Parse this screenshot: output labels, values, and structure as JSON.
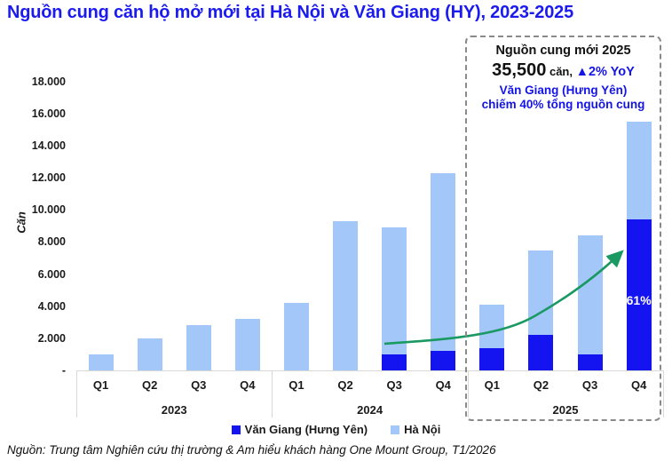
{
  "title": "Nguồn cung căn hộ mở mới tại Hà Nội và Văn Giang (HY), 2023-2025",
  "y_axis": {
    "title": "Căn",
    "tick_labels": [
      "-",
      "2.000",
      "4.000",
      "6.000",
      "8.000",
      "10.000",
      "12.000",
      "14.000",
      "16.000",
      "18.000"
    ]
  },
  "annotation": {
    "heading": "Nguồn cung mới 2025",
    "value": "35,500",
    "unit": "căn,",
    "yoy": "▲2% YoY",
    "line3": "Văn Giang (Hưng Yên)",
    "line4": "chiếm 40% tổng nguồn cung"
  },
  "legend": [
    {
      "label": "Văn Giang (Hưng Yên)",
      "color": "#1414f0"
    },
    {
      "label": "Hà Nội",
      "color": "#a3c7f8"
    }
  ],
  "source": "Nguồn: Trung tâm Nghiên cứu thị trường & Am hiểu khách hàng One Mount Group, T1/2026",
  "colors": {
    "title_blue": "#1b1bf0",
    "van_giang": "#1414f0",
    "ha_noi": "#a3c7f8",
    "arrow_green": "#1a9a62",
    "axis_gray": "#d9d9d9",
    "dash_border": "#8a8a8a"
  },
  "chart_data": {
    "type": "bar",
    "stacked": true,
    "title": "Nguồn cung căn hộ mở mới tại Hà Nội và Văn Giang (HY), 2023-2025",
    "ylabel": "Căn",
    "ylim": [
      0,
      18000
    ],
    "ytick_step": 2000,
    "grid": false,
    "legend_position": "bottom",
    "years": [
      "2023",
      "2024",
      "2025"
    ],
    "categories": [
      "Q1",
      "Q2",
      "Q3",
      "Q4",
      "Q1",
      "Q2",
      "Q3",
      "Q4",
      "Q1",
      "Q2",
      "Q3",
      "Q4"
    ],
    "series": [
      {
        "name": "Văn Giang (Hưng Yên)",
        "color": "#1414f0",
        "values": [
          0,
          0,
          0,
          0,
          0,
          0,
          1000,
          1200,
          1400,
          2200,
          1000,
          9400
        ]
      },
      {
        "name": "Hà Nội",
        "color": "#a3c7f8",
        "values": [
          1000,
          2000,
          2800,
          3200,
          4200,
          9300,
          7900,
          11100,
          2700,
          5300,
          7400,
          6100
        ]
      }
    ],
    "totals": [
      1000,
      2000,
      2800,
      3200,
      4200,
      9300,
      8900,
      12300,
      4100,
      7500,
      8400,
      15500
    ],
    "bar_label": {
      "bar_index": 11,
      "series": "Văn Giang (Hưng Yên)",
      "text": "61%"
    },
    "annotation_2025_total": 35500,
    "annotation_yoy_pct": 2,
    "annotation_van_giang_share_pct": 40
  }
}
